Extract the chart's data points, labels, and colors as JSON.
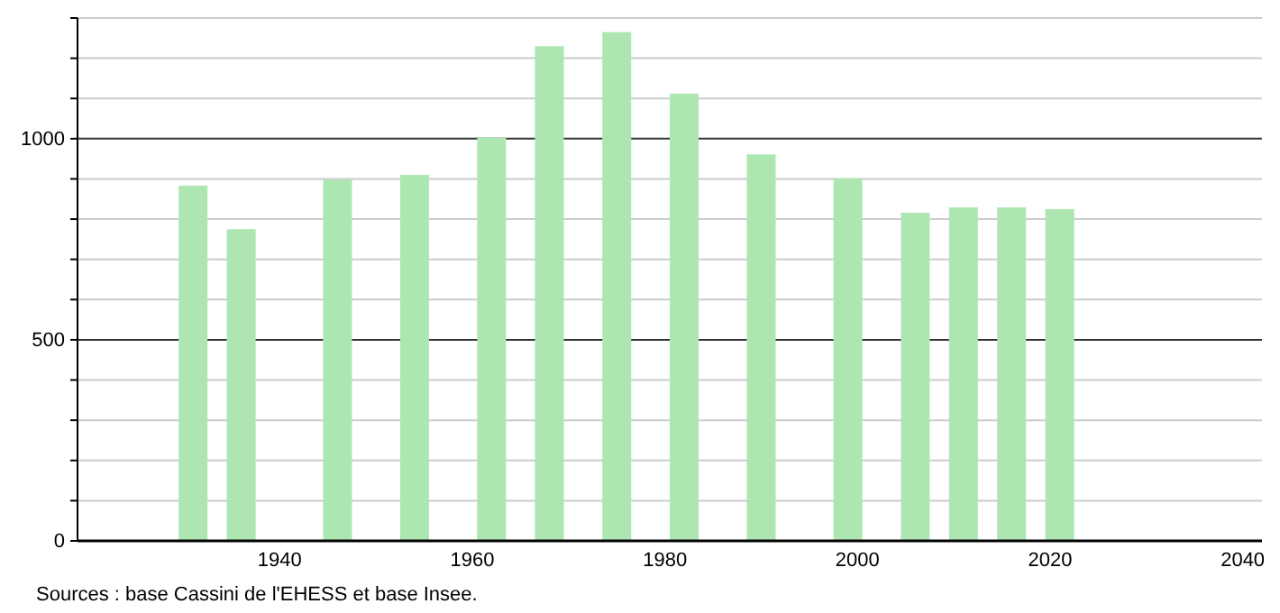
{
  "chart_data": {
    "type": "bar",
    "x": [
      1931,
      1936,
      1946,
      1954,
      1962,
      1968,
      1975,
      1982,
      1990,
      1999,
      2006,
      2011,
      2016,
      2021
    ],
    "values": [
      883,
      775,
      898,
      910,
      1003,
      1230,
      1265,
      1112,
      961,
      901,
      816,
      829,
      829,
      825
    ],
    "color": "#ade6b0",
    "xlim": [
      1919,
      2042
    ],
    "xticks": [
      1940,
      1960,
      1980,
      2000,
      2020,
      2040
    ],
    "ylim": [
      0,
      1300
    ],
    "yticks": [
      0,
      {
        "value": 100,
        "label": null
      },
      {
        "value": 200,
        "label": null
      },
      {
        "value": 300,
        "label": null
      },
      {
        "value": 400,
        "label": null
      },
      500,
      {
        "value": 600,
        "label": null
      },
      {
        "value": 700,
        "label": null
      },
      {
        "value": 800,
        "label": null
      },
      {
        "value": 900,
        "label": null
      },
      1000,
      {
        "value": 1100,
        "label": null
      },
      {
        "value": 1200,
        "label": null
      },
      {
        "value": 1300,
        "label": null
      }
    ],
    "grid": "y",
    "annotations": [
      "Sources : base Cassini de l'EHESS et base Insee."
    ]
  }
}
